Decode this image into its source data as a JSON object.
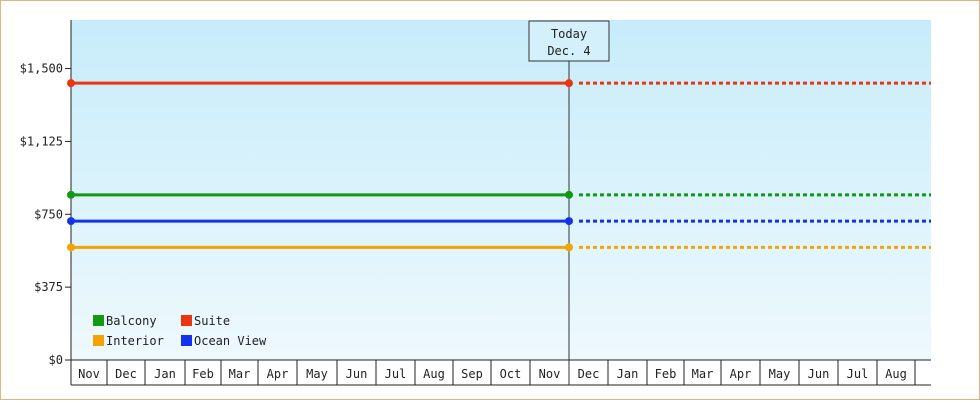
{
  "chart_data": {
    "type": "line",
    "ylim": [
      0,
      1750
    ],
    "y_ticks": [
      {
        "value": 0,
        "label": "$0"
      },
      {
        "value": 375,
        "label": "$375"
      },
      {
        "value": 750,
        "label": "$750"
      },
      {
        "value": 1125,
        "label": "$1,125"
      },
      {
        "value": 1500,
        "label": "$1,500"
      }
    ],
    "months": [
      "Nov",
      "Dec",
      "Jan",
      "Feb",
      "Mar",
      "Apr",
      "May",
      "Jun",
      "Jul",
      "Aug",
      "Sep",
      "Oct",
      "Nov",
      "Dec",
      "Jan",
      "Feb",
      "Mar",
      "Apr",
      "May",
      "Jun",
      "Jul",
      "Aug"
    ],
    "today_index": 13,
    "today_label": [
      "Today",
      "Dec. 4"
    ],
    "series": [
      {
        "name": "Suite",
        "color": "#ee3311",
        "value": 1425
      },
      {
        "name": "Balcony",
        "color": "#119911",
        "value": 850
      },
      {
        "name": "Ocean View",
        "color": "#1133ee",
        "value": 715
      },
      {
        "name": "Interior",
        "color": "#f5a300",
        "value": 580
      }
    ],
    "legend_order": [
      [
        "Balcony",
        "Suite"
      ],
      [
        "Interior",
        "Ocean View"
      ]
    ],
    "legend_placement": "bottom-left",
    "background_gradient": [
      "#c7ecfa",
      "#eef9fd"
    ]
  }
}
